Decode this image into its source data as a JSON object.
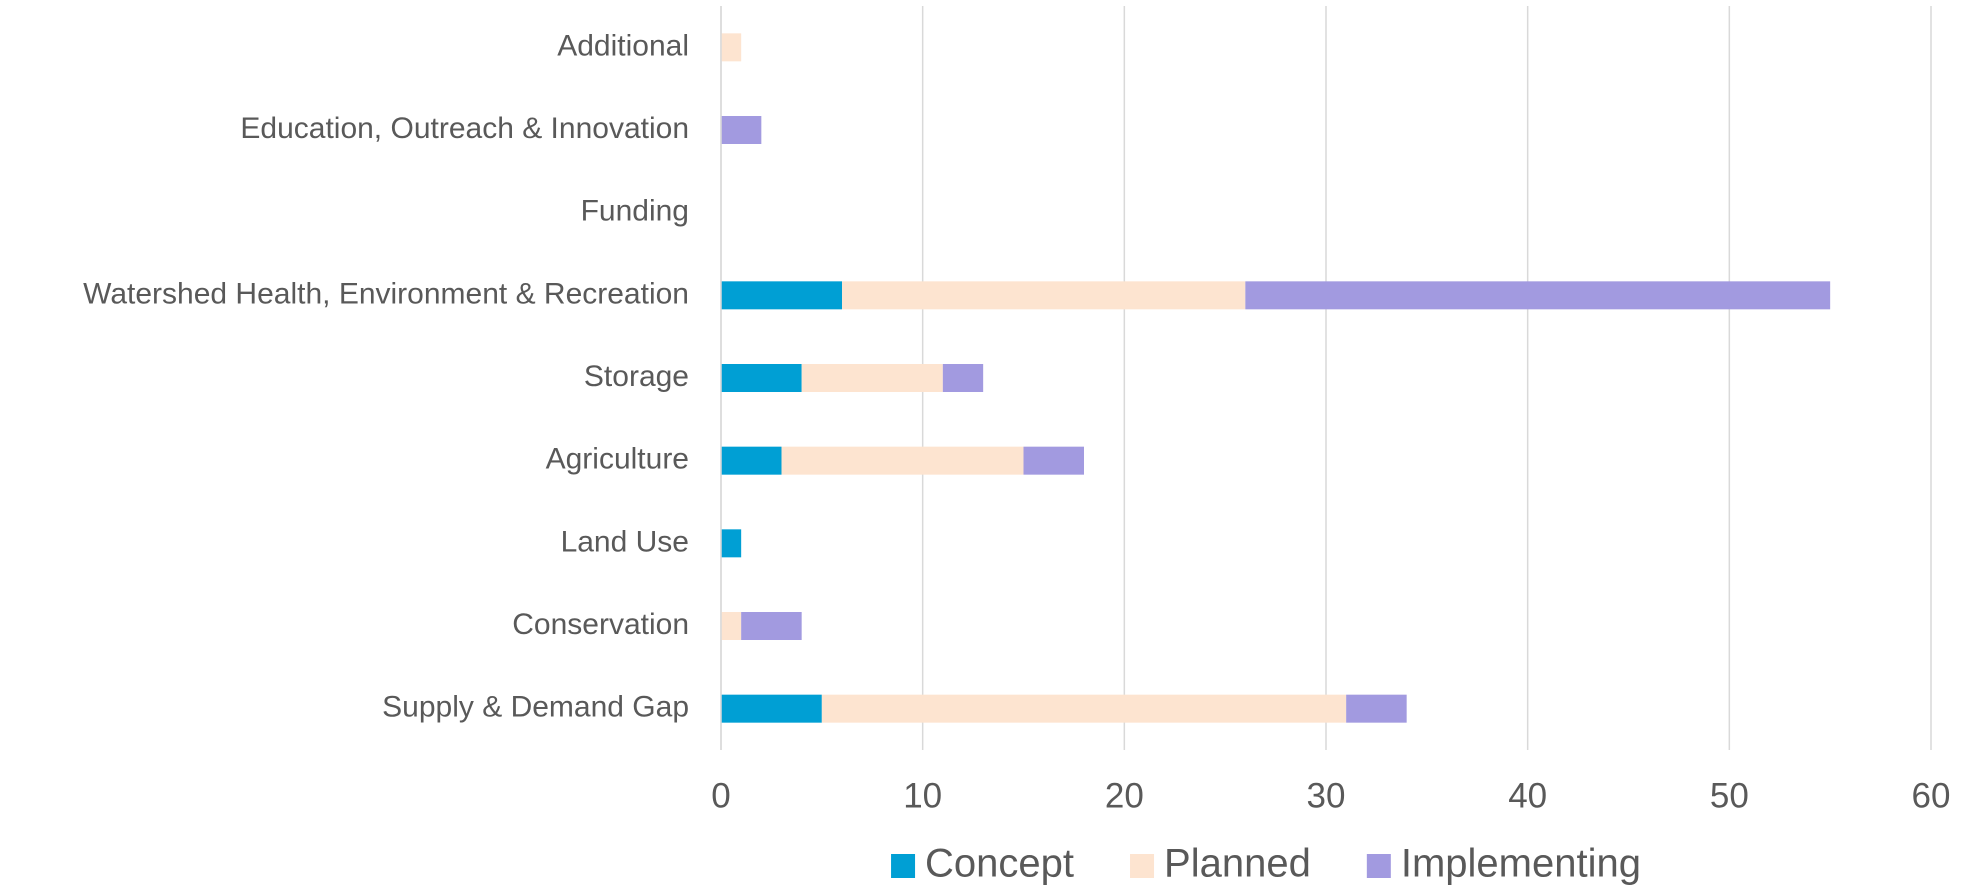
{
  "chart_data": {
    "type": "stacked-bar-horizontal",
    "categories": [
      "Supply & Demand Gap",
      "Conservation",
      "Land Use",
      "Agriculture",
      "Storage",
      "Watershed Health, Environment & Recreation",
      "Funding",
      "Education, Outreach & Innovation",
      "Additional"
    ],
    "series": [
      {
        "name": "Concept",
        "color": "#009fd4",
        "values": [
          5,
          0,
          1,
          3,
          4,
          6,
          0,
          0,
          0
        ]
      },
      {
        "name": "Planned",
        "color": "#fde4d0",
        "values": [
          26,
          1,
          0,
          12,
          7,
          20,
          0,
          0,
          1
        ]
      },
      {
        "name": "Implementing",
        "color": "#a29ae0",
        "values": [
          3,
          3,
          0,
          3,
          2,
          29,
          0,
          2,
          0
        ]
      }
    ],
    "xlim": [
      0,
      60
    ],
    "xticks": [
      0,
      10,
      20,
      30,
      40,
      50,
      60
    ],
    "grid": true,
    "legend": "bottom"
  }
}
